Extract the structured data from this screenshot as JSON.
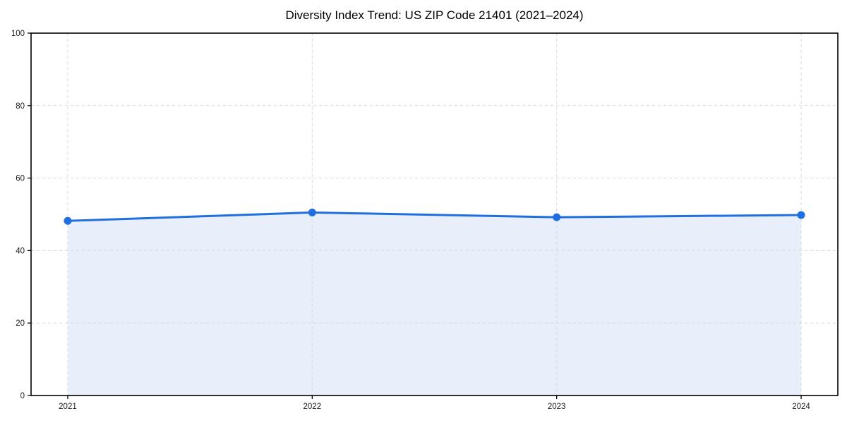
{
  "chart_data": {
    "type": "line",
    "title": "Diversity Index Trend: US ZIP Code 21401 (2021–2024)",
    "categories": [
      "2021",
      "2022",
      "2023",
      "2024"
    ],
    "series": [
      {
        "name": "Diversity Index",
        "values": [
          48.2,
          50.5,
          49.2,
          49.8
        ]
      }
    ],
    "xlabel": "",
    "ylabel": "",
    "ylim": [
      0,
      100
    ],
    "yticks": [
      0,
      20,
      40,
      60,
      80,
      100
    ],
    "grid": true,
    "grid_style": "dashed",
    "legend": "none",
    "area_fill": true,
    "colors": {
      "line": "#1f6fe0",
      "marker": "#1f6fe0",
      "area": "#e8effb",
      "grid": "#d9d9d9",
      "axis": "#000000",
      "tick_text": "#1a1a1a",
      "background": "#ffffff"
    }
  }
}
